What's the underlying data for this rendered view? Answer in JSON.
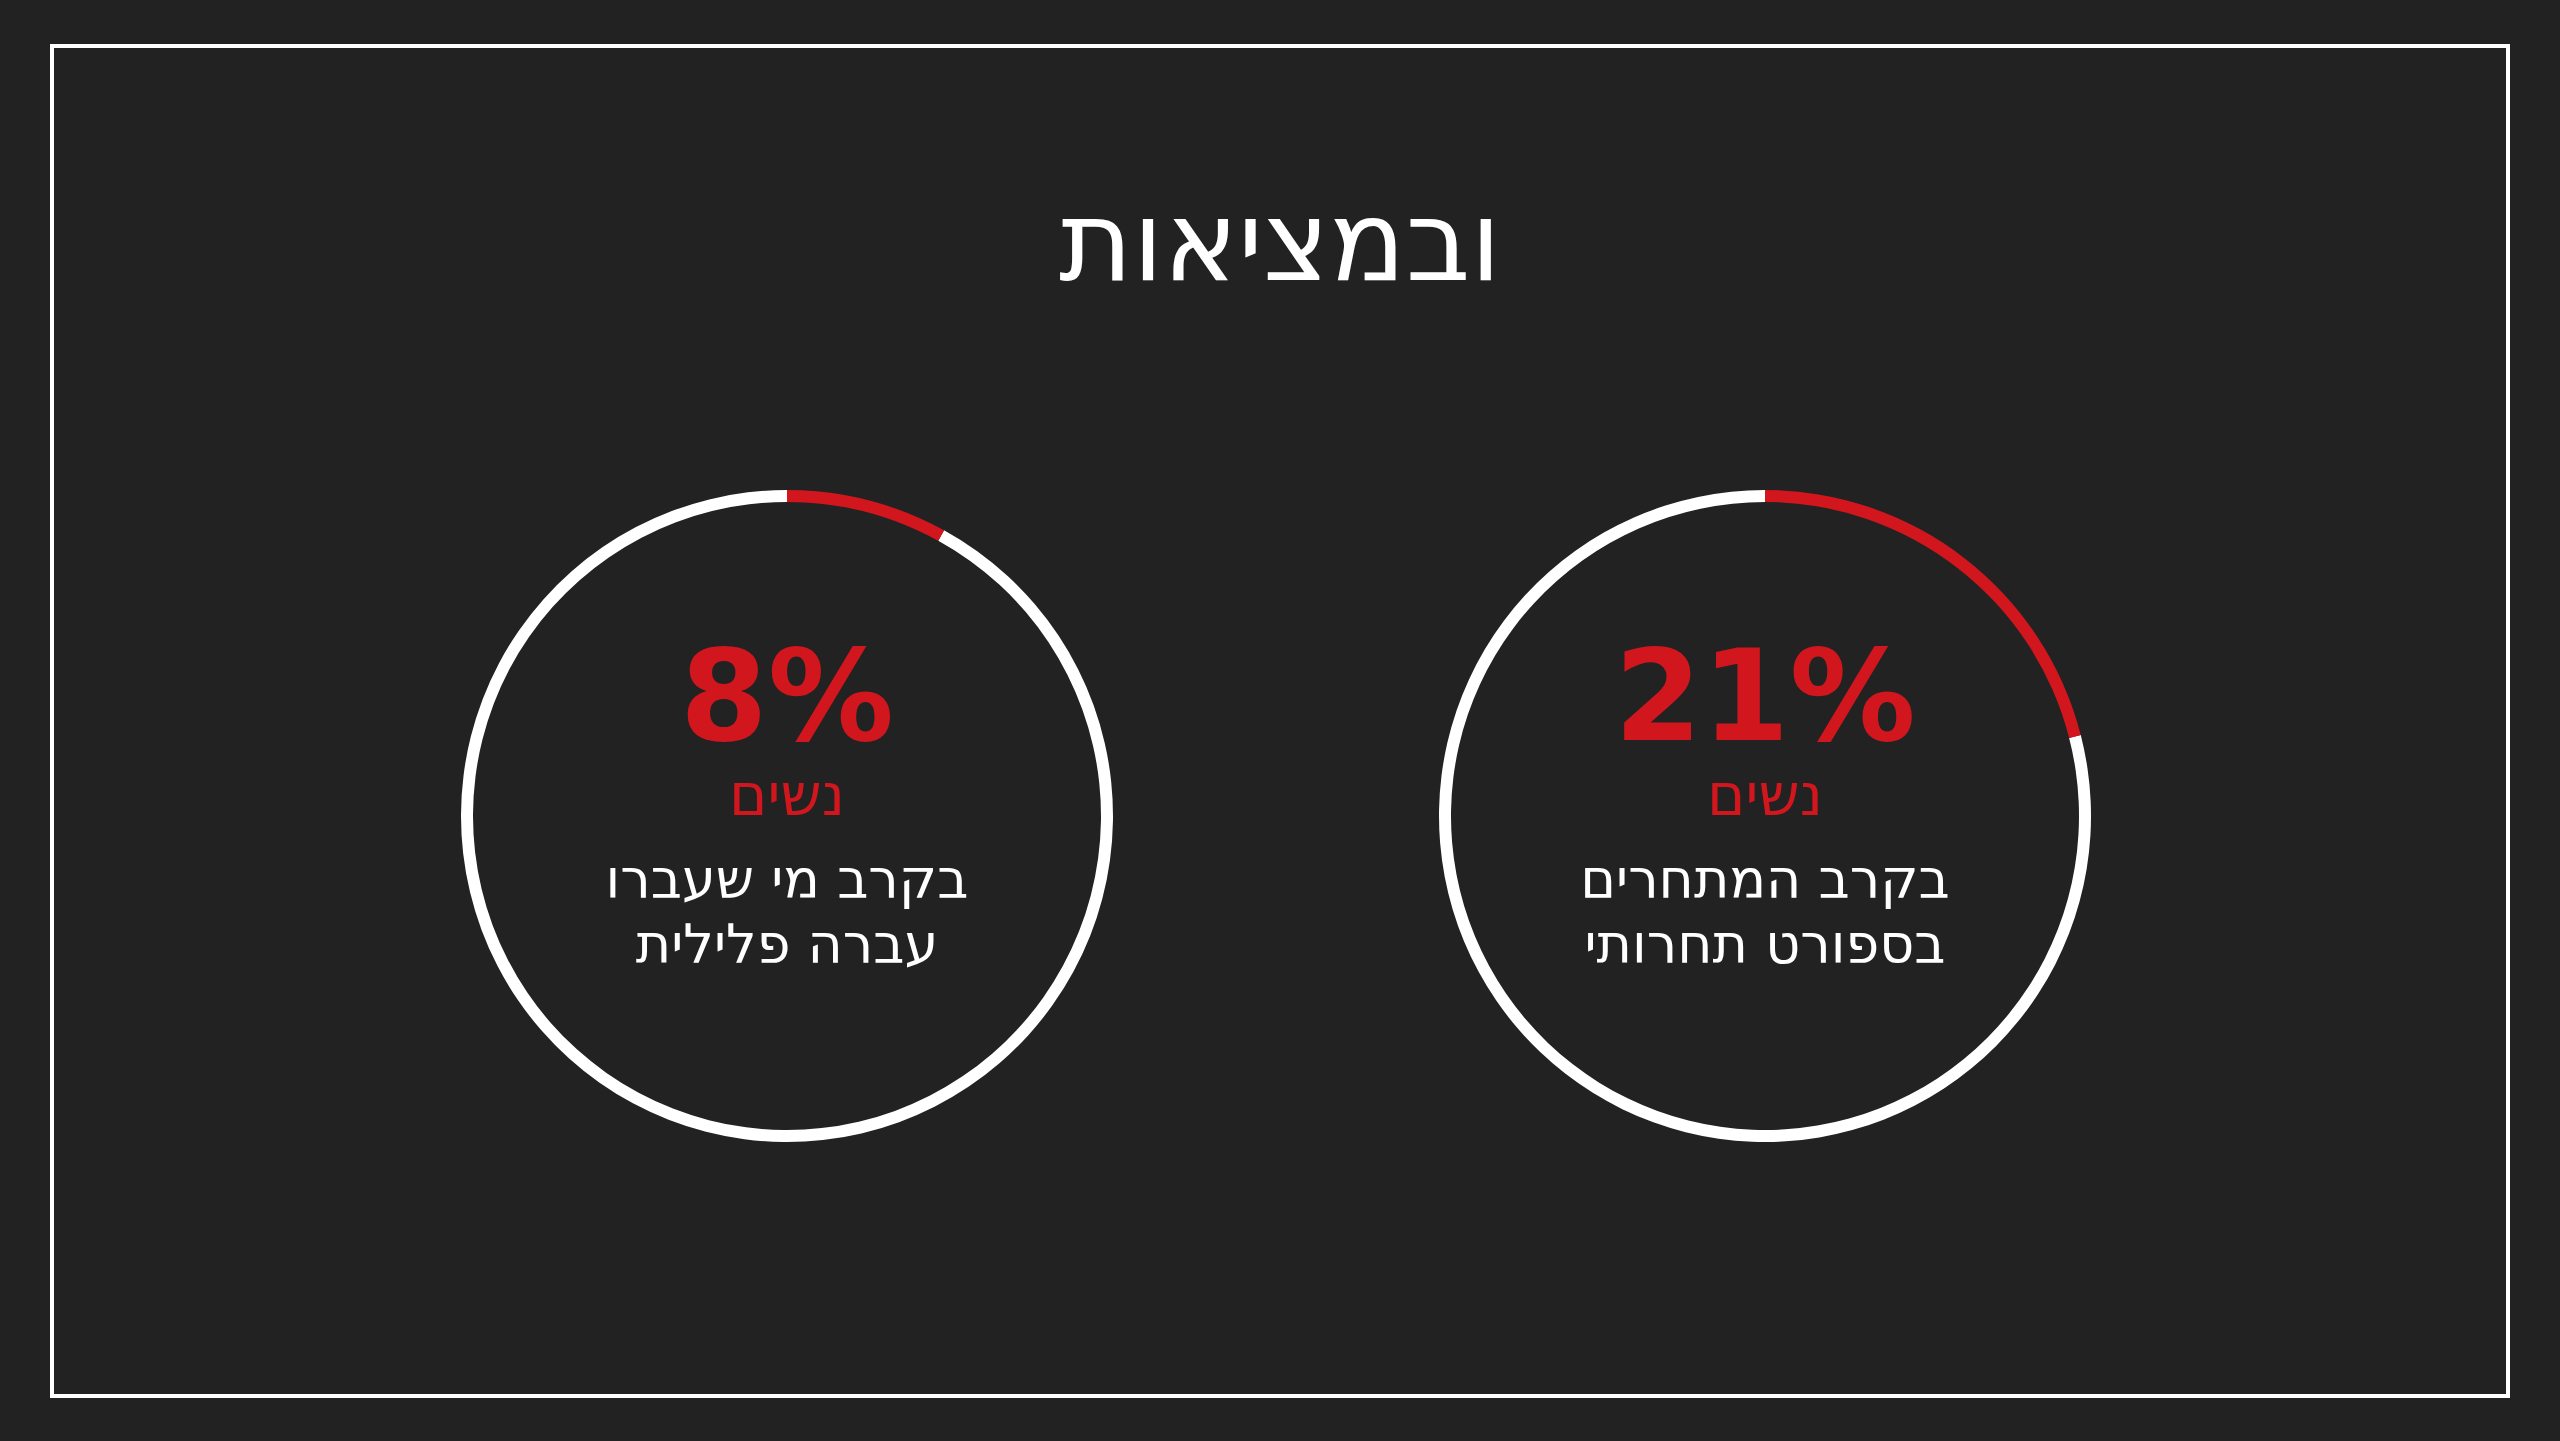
{
  "chart_data": [
    {
      "type": "donut",
      "title": "ובמציאות",
      "categories": [
        "נשים",
        null
      ],
      "values": [
        21,
        79
      ],
      "value_labels": [
        "21%",
        null
      ],
      "colors": [
        "#d2161e",
        "#ffffff"
      ],
      "annotations": [
        "בקרב המתחרים",
        "בספורט תחרותי"
      ]
    },
    {
      "type": "donut",
      "categories": [
        "נשים",
        null
      ],
      "values": [
        8,
        92
      ],
      "value_labels": [
        "8%",
        null
      ],
      "colors": [
        "#d2161e",
        "#ffffff"
      ],
      "annotations": [
        "בקרב מי שעברו",
        "עברה פלילית"
      ]
    }
  ]
}
